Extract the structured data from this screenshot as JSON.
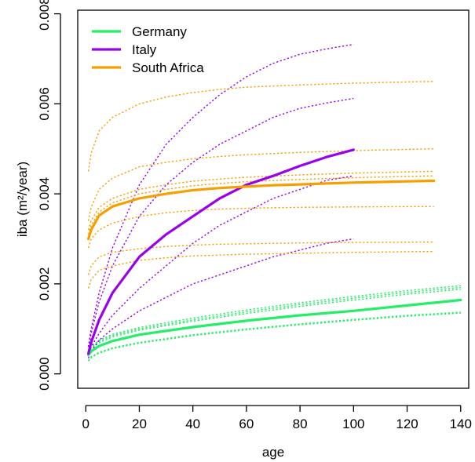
{
  "chart_data": {
    "type": "line",
    "xlabel": "age",
    "ylabel": "iba (m²/year)",
    "xlim": [
      -3,
      143
    ],
    "ylim": [
      -0.00032,
      0.00808
    ],
    "x_ticks": [
      0,
      20,
      40,
      60,
      80,
      100,
      120,
      140
    ],
    "x_tick_labels": [
      "0",
      "20",
      "40",
      "60",
      "80",
      "100",
      "120",
      "140"
    ],
    "y_ticks": [
      0.0,
      0.002,
      0.004,
      0.006,
      0.008
    ],
    "y_tick_labels": [
      "0.000",
      "0.002",
      "0.004",
      "0.006",
      "0.008"
    ],
    "grid": false,
    "legend_position": "top-left",
    "legend": [
      {
        "name": "Germany",
        "color": "#22ee66"
      },
      {
        "name": "Italy",
        "color": "#9900ee"
      },
      {
        "name": "South Africa",
        "color": "#f5a000"
      }
    ],
    "series": [
      {
        "name": "Germany",
        "group": "Germany",
        "style": "solid",
        "color": "#22ee66",
        "x_end": 140,
        "points": [
          [
            1,
            0.00042
          ],
          [
            2,
            0.0005
          ],
          [
            5,
            0.00062
          ],
          [
            10,
            0.00073
          ],
          [
            20,
            0.00087
          ],
          [
            40,
            0.00104
          ],
          [
            60,
            0.00118
          ],
          [
            80,
            0.0013
          ],
          [
            100,
            0.0014
          ],
          [
            120,
            0.00152
          ],
          [
            140,
            0.00164
          ]
        ]
      },
      {
        "name": "",
        "group": "Germany",
        "style": "dotted",
        "color": "#22ee66",
        "points": [
          [
            1,
            0.0005
          ],
          [
            2,
            0.0006
          ],
          [
            5,
            0.00075
          ],
          [
            10,
            0.00088
          ],
          [
            20,
            0.00103
          ],
          [
            40,
            0.00124
          ],
          [
            60,
            0.00142
          ],
          [
            80,
            0.00158
          ],
          [
            100,
            0.00172
          ],
          [
            120,
            0.00185
          ],
          [
            140,
            0.00196
          ]
        ]
      },
      {
        "name": "",
        "group": "Germany",
        "style": "dotted",
        "color": "#22ee66",
        "points": [
          [
            1,
            0.00048
          ],
          [
            2,
            0.00058
          ],
          [
            5,
            0.00072
          ],
          [
            10,
            0.00085
          ],
          [
            20,
            0.001
          ],
          [
            40,
            0.0012
          ],
          [
            60,
            0.00138
          ],
          [
            80,
            0.00154
          ],
          [
            100,
            0.00168
          ],
          [
            120,
            0.00181
          ],
          [
            140,
            0.00192
          ]
        ]
      },
      {
        "name": "",
        "group": "Germany",
        "style": "dotted",
        "color": "#22ee66",
        "points": [
          [
            1,
            0.00045
          ],
          [
            2,
            0.00055
          ],
          [
            5,
            0.00069
          ],
          [
            10,
            0.00082
          ],
          [
            20,
            0.00097
          ],
          [
            40,
            0.00117
          ],
          [
            60,
            0.00134
          ],
          [
            80,
            0.0015
          ],
          [
            100,
            0.00164
          ],
          [
            120,
            0.00177
          ],
          [
            140,
            0.00188
          ]
        ]
      },
      {
        "name": "",
        "group": "Germany",
        "style": "dotted",
        "color": "#22ee66",
        "points": [
          [
            1,
            0.0003
          ],
          [
            2,
            0.00038
          ],
          [
            5,
            0.00048
          ],
          [
            10,
            0.00058
          ],
          [
            20,
            0.0007
          ],
          [
            40,
            0.00087
          ],
          [
            60,
            0.001
          ],
          [
            80,
            0.00111
          ],
          [
            100,
            0.00121
          ],
          [
            120,
            0.0013
          ],
          [
            140,
            0.00137
          ]
        ]
      },
      {
        "name": "",
        "group": "Germany",
        "style": "dotted",
        "color": "#22ee66",
        "points": [
          [
            1,
            0.00028
          ],
          [
            2,
            0.00036
          ],
          [
            5,
            0.00046
          ],
          [
            10,
            0.00056
          ],
          [
            20,
            0.00068
          ],
          [
            40,
            0.00085
          ],
          [
            60,
            0.00098
          ],
          [
            80,
            0.00109
          ],
          [
            100,
            0.00119
          ],
          [
            120,
            0.00128
          ],
          [
            140,
            0.00135
          ]
        ]
      },
      {
        "name": "Italy",
        "group": "Italy",
        "style": "solid",
        "color": "#9900ee",
        "points": [
          [
            1,
            0.00045
          ],
          [
            2,
            0.0007
          ],
          [
            5,
            0.0012
          ],
          [
            10,
            0.0018
          ],
          [
            20,
            0.0026
          ],
          [
            30,
            0.0031
          ],
          [
            40,
            0.0035
          ],
          [
            50,
            0.0039
          ],
          [
            60,
            0.0042
          ],
          [
            70,
            0.0044
          ],
          [
            80,
            0.00462
          ],
          [
            90,
            0.00482
          ],
          [
            100,
            0.00498
          ]
        ]
      },
      {
        "name": "",
        "group": "Italy",
        "style": "dotted",
        "color": "#9900ee",
        "points": [
          [
            1,
            0.0006
          ],
          [
            2,
            0.001
          ],
          [
            5,
            0.0018
          ],
          [
            10,
            0.0028
          ],
          [
            20,
            0.0042
          ],
          [
            30,
            0.0051
          ],
          [
            40,
            0.0057
          ],
          [
            50,
            0.0062
          ],
          [
            60,
            0.0066
          ],
          [
            70,
            0.0069
          ],
          [
            80,
            0.0071
          ],
          [
            90,
            0.00722
          ],
          [
            100,
            0.00732
          ]
        ]
      },
      {
        "name": "",
        "group": "Italy",
        "style": "dotted",
        "color": "#9900ee",
        "points": [
          [
            1,
            0.0005
          ],
          [
            2,
            0.0009
          ],
          [
            5,
            0.0016
          ],
          [
            10,
            0.0024
          ],
          [
            20,
            0.0035
          ],
          [
            30,
            0.0042
          ],
          [
            40,
            0.0047
          ],
          [
            50,
            0.0051
          ],
          [
            60,
            0.0054
          ],
          [
            70,
            0.0057
          ],
          [
            80,
            0.0059
          ],
          [
            90,
            0.00602
          ],
          [
            100,
            0.00612
          ]
        ]
      },
      {
        "name": "",
        "group": "Italy",
        "style": "dotted",
        "color": "#9900ee",
        "points": [
          [
            1,
            0.0004
          ],
          [
            2,
            0.0006
          ],
          [
            5,
            0.0009
          ],
          [
            10,
            0.0013
          ],
          [
            20,
            0.0019
          ],
          [
            30,
            0.0024
          ],
          [
            40,
            0.0029
          ],
          [
            50,
            0.0033
          ],
          [
            60,
            0.0036
          ],
          [
            70,
            0.0039
          ],
          [
            80,
            0.0041
          ],
          [
            90,
            0.0043
          ],
          [
            100,
            0.0044
          ]
        ]
      },
      {
        "name": "",
        "group": "Italy",
        "style": "dotted",
        "color": "#9900ee",
        "points": [
          [
            1,
            0.00035
          ],
          [
            2,
            0.0005
          ],
          [
            5,
            0.00075
          ],
          [
            10,
            0.001
          ],
          [
            20,
            0.0014
          ],
          [
            30,
            0.0017
          ],
          [
            40,
            0.002
          ],
          [
            50,
            0.0022
          ],
          [
            60,
            0.0024
          ],
          [
            70,
            0.0026
          ],
          [
            80,
            0.00275
          ],
          [
            90,
            0.0029
          ],
          [
            100,
            0.003
          ]
        ]
      },
      {
        "name": "South Africa",
        "group": "South Africa",
        "style": "solid",
        "color": "#f5a000",
        "points": [
          [
            1,
            0.003
          ],
          [
            2,
            0.0032
          ],
          [
            5,
            0.00352
          ],
          [
            10,
            0.00372
          ],
          [
            20,
            0.0039
          ],
          [
            30,
            0.004
          ],
          [
            40,
            0.00408
          ],
          [
            50,
            0.00413
          ],
          [
            60,
            0.00416
          ],
          [
            70,
            0.00419
          ],
          [
            80,
            0.00421
          ],
          [
            90,
            0.00423
          ],
          [
            100,
            0.00425
          ],
          [
            115,
            0.00427
          ],
          [
            130,
            0.00429
          ]
        ]
      },
      {
        "name": "",
        "group": "South Africa",
        "style": "dotted",
        "color": "#f5a000",
        "points": [
          [
            1,
            0.0045
          ],
          [
            2,
            0.0049
          ],
          [
            5,
            0.0054
          ],
          [
            10,
            0.0057
          ],
          [
            20,
            0.006
          ],
          [
            30,
            0.00615
          ],
          [
            40,
            0.00625
          ],
          [
            50,
            0.00632
          ],
          [
            60,
            0.00637
          ],
          [
            80,
            0.00642
          ],
          [
            100,
            0.00646
          ],
          [
            130,
            0.0065
          ]
        ]
      },
      {
        "name": "",
        "group": "South Africa",
        "style": "dotted",
        "color": "#f5a000",
        "points": [
          [
            1,
            0.0034
          ],
          [
            2,
            0.0037
          ],
          [
            5,
            0.0041
          ],
          [
            10,
            0.00435
          ],
          [
            20,
            0.0046
          ],
          [
            30,
            0.0047
          ],
          [
            40,
            0.00478
          ],
          [
            50,
            0.00483
          ],
          [
            60,
            0.00487
          ],
          [
            80,
            0.00492
          ],
          [
            100,
            0.00496
          ],
          [
            130,
            0.005
          ]
        ]
      },
      {
        "name": "",
        "group": "South Africa",
        "style": "dotted",
        "color": "#f5a000",
        "points": [
          [
            1,
            0.0032
          ],
          [
            2,
            0.0034
          ],
          [
            5,
            0.0037
          ],
          [
            10,
            0.0039
          ],
          [
            20,
            0.0041
          ],
          [
            30,
            0.0042
          ],
          [
            40,
            0.00428
          ],
          [
            50,
            0.00433
          ],
          [
            60,
            0.00437
          ],
          [
            80,
            0.00442
          ],
          [
            100,
            0.00446
          ],
          [
            130,
            0.0045
          ]
        ]
      },
      {
        "name": "",
        "group": "South Africa",
        "style": "dotted",
        "color": "#f5a000",
        "points": [
          [
            1,
            0.0031
          ],
          [
            2,
            0.0033
          ],
          [
            5,
            0.0036
          ],
          [
            10,
            0.0038
          ],
          [
            20,
            0.004
          ],
          [
            30,
            0.0041
          ],
          [
            40,
            0.00418
          ],
          [
            50,
            0.00423
          ],
          [
            60,
            0.00427
          ],
          [
            80,
            0.00432
          ],
          [
            100,
            0.00436
          ],
          [
            130,
            0.0044
          ]
        ]
      },
      {
        "name": "",
        "group": "South Africa",
        "style": "dotted",
        "color": "#f5a000",
        "points": [
          [
            1,
            0.003
          ],
          [
            2,
            0.0032
          ],
          [
            5,
            0.0035
          ],
          [
            10,
            0.0037
          ],
          [
            20,
            0.0039
          ],
          [
            30,
            0.004
          ],
          [
            40,
            0.00408
          ],
          [
            50,
            0.00413
          ],
          [
            60,
            0.00417
          ],
          [
            80,
            0.00422
          ],
          [
            100,
            0.00426
          ],
          [
            130,
            0.0043
          ]
        ]
      },
      {
        "name": "",
        "group": "South Africa",
        "style": "dotted",
        "color": "#f5a000",
        "points": [
          [
            1,
            0.0028
          ],
          [
            2,
            0.003
          ],
          [
            5,
            0.0032
          ],
          [
            10,
            0.00335
          ],
          [
            20,
            0.0035
          ],
          [
            30,
            0.00358
          ],
          [
            40,
            0.00363
          ],
          [
            50,
            0.00366
          ],
          [
            60,
            0.00368
          ],
          [
            80,
            0.0037
          ],
          [
            100,
            0.00371
          ],
          [
            130,
            0.00372
          ]
        ]
      },
      {
        "name": "",
        "group": "South Africa",
        "style": "dotted",
        "color": "#f5a000",
        "points": [
          [
            1,
            0.0022
          ],
          [
            2,
            0.0024
          ],
          [
            5,
            0.0026
          ],
          [
            10,
            0.0027
          ],
          [
            20,
            0.00278
          ],
          [
            30,
            0.00283
          ],
          [
            40,
            0.00286
          ],
          [
            50,
            0.00288
          ],
          [
            60,
            0.00289
          ],
          [
            80,
            0.00291
          ],
          [
            100,
            0.00292
          ],
          [
            130,
            0.00293
          ]
        ]
      },
      {
        "name": "",
        "group": "South Africa",
        "style": "dotted",
        "color": "#f5a000",
        "points": [
          [
            1,
            0.0019
          ],
          [
            2,
            0.0021
          ],
          [
            5,
            0.0023
          ],
          [
            10,
            0.0024
          ],
          [
            20,
            0.00252
          ],
          [
            30,
            0.00258
          ],
          [
            40,
            0.00262
          ],
          [
            50,
            0.00264
          ],
          [
            60,
            0.00266
          ],
          [
            80,
            0.00268
          ],
          [
            100,
            0.0027
          ],
          [
            130,
            0.00272
          ]
        ]
      }
    ]
  }
}
